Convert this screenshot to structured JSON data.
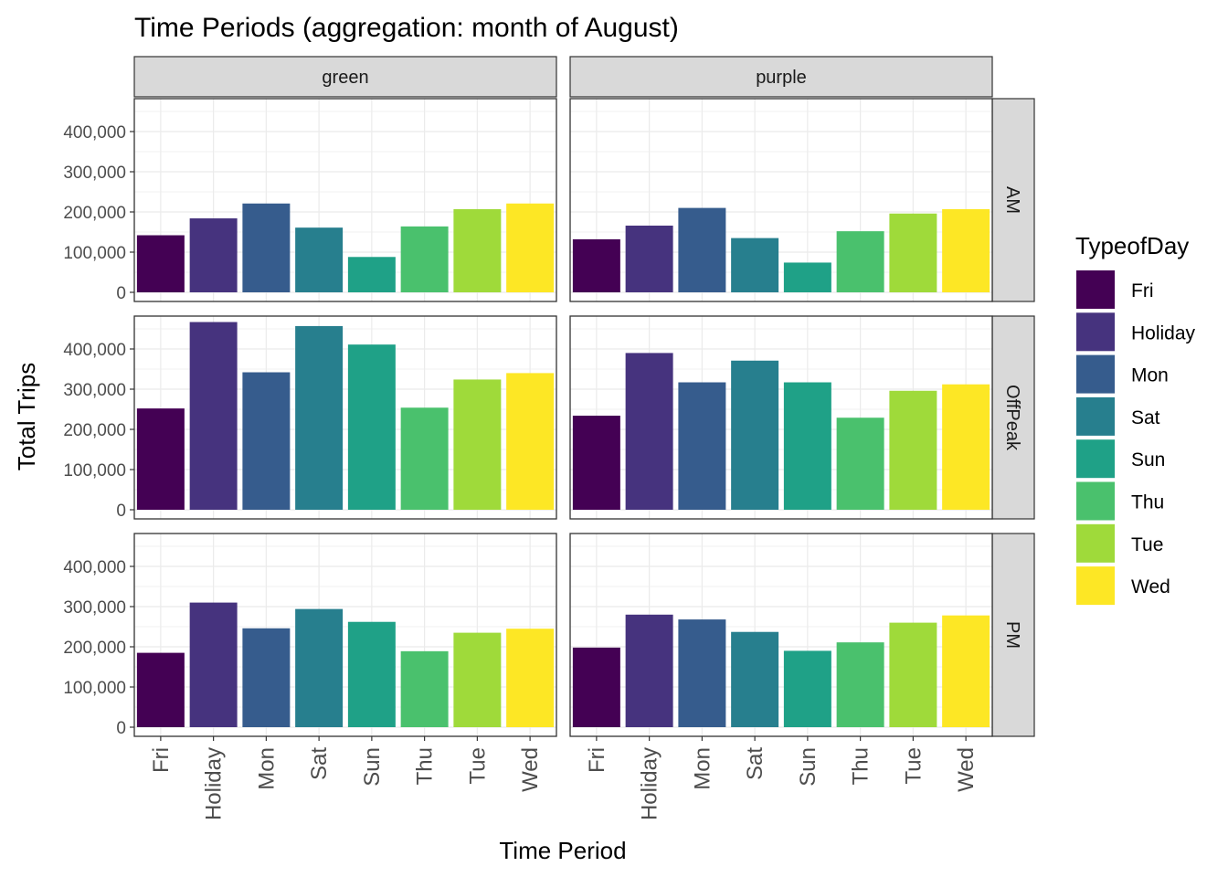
{
  "chart_data": {
    "type": "bar",
    "title": "Time Periods (aggregation: month of August)",
    "xlabel": "Time Period",
    "ylabel": "Total Trips",
    "ylim": [
      0,
      480000
    ],
    "yticks": [
      0,
      100000,
      200000,
      300000,
      400000
    ],
    "ytick_labels": [
      "0",
      "100,000",
      "200,000",
      "300,000",
      "400,000"
    ],
    "grid": true,
    "categories": [
      "Fri",
      "Holiday",
      "Mon",
      "Sat",
      "Sun",
      "Thu",
      "Tue",
      "Wed"
    ],
    "facet_columns": [
      "green",
      "purple"
    ],
    "facet_rows": [
      "AM",
      "OffPeak",
      "PM"
    ],
    "legend": {
      "title": "TypeofDay",
      "position": "right",
      "entries": [
        {
          "label": "Fri",
          "color": "#440154"
        },
        {
          "label": "Holiday",
          "color": "#46337E"
        },
        {
          "label": "Mon",
          "color": "#365C8D"
        },
        {
          "label": "Sat",
          "color": "#277F8E"
        },
        {
          "label": "Sun",
          "color": "#1FA187"
        },
        {
          "label": "Thu",
          "color": "#4AC16D"
        },
        {
          "label": "Tue",
          "color": "#9FDA3A"
        },
        {
          "label": "Wed",
          "color": "#FDE725"
        }
      ]
    },
    "panels": [
      {
        "row": "AM",
        "col": "green",
        "values": [
          142000,
          184000,
          221000,
          161000,
          88000,
          164000,
          207000,
          221000
        ]
      },
      {
        "row": "AM",
        "col": "purple",
        "values": [
          132000,
          166000,
          210000,
          135000,
          74000,
          152000,
          196000,
          207000
        ]
      },
      {
        "row": "OffPeak",
        "col": "green",
        "values": [
          252000,
          467000,
          342000,
          457000,
          411000,
          254000,
          324000,
          340000
        ]
      },
      {
        "row": "OffPeak",
        "col": "purple",
        "values": [
          234000,
          390000,
          317000,
          371000,
          317000,
          229000,
          296000,
          312000
        ]
      },
      {
        "row": "PM",
        "col": "green",
        "values": [
          185000,
          310000,
          246000,
          294000,
          262000,
          189000,
          235000,
          245000
        ]
      },
      {
        "row": "PM",
        "col": "purple",
        "values": [
          198000,
          280000,
          268000,
          237000,
          190000,
          211000,
          260000,
          278000
        ]
      }
    ]
  }
}
